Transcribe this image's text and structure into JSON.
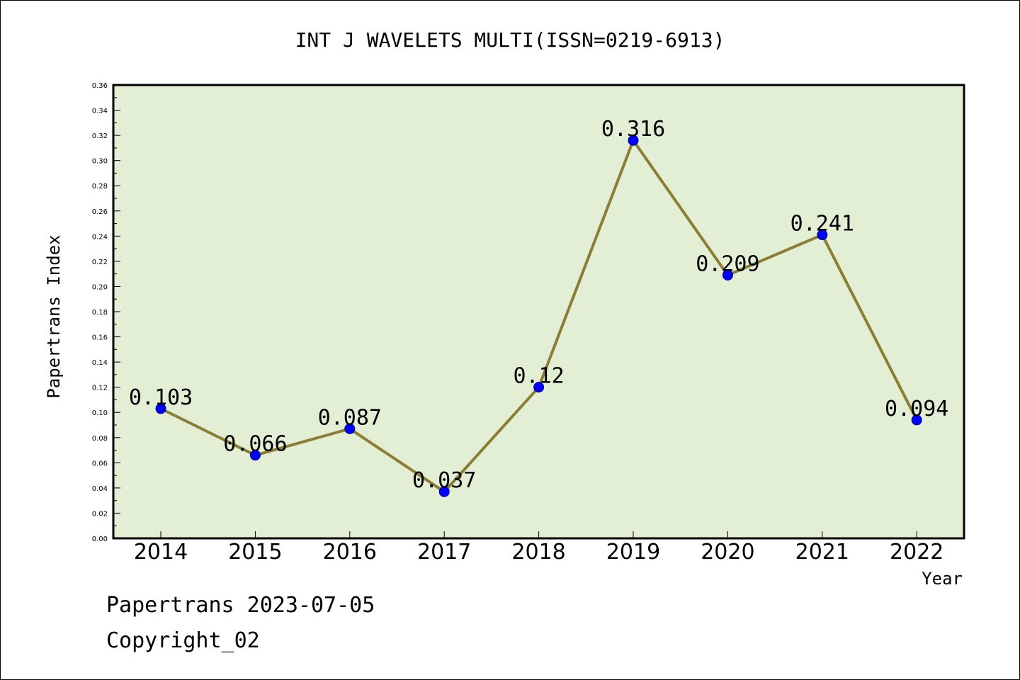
{
  "chart_data": {
    "type": "line",
    "title": "INT J WAVELETS MULTI(ISSN=0219-6913)",
    "xlabel": "Year",
    "ylabel": "Papertrans Index",
    "categories": [
      "2014",
      "2015",
      "2016",
      "2017",
      "2018",
      "2019",
      "2020",
      "2021",
      "2022"
    ],
    "values": [
      0.103,
      0.066,
      0.087,
      0.037,
      0.12,
      0.316,
      0.209,
      0.241,
      0.094
    ],
    "data_labels": [
      "0.103",
      "0.066",
      "0.087",
      "0.037",
      "0.12",
      "0.316",
      "0.209",
      "0.241",
      "0.094"
    ],
    "ylim": [
      0,
      0.36
    ],
    "yticks": [
      "0.00",
      "0.02",
      "0.04",
      "0.06",
      "0.08",
      "0.10",
      "0.12",
      "0.14",
      "0.16",
      "0.18",
      "0.20",
      "0.22",
      "0.24",
      "0.26",
      "0.28",
      "0.30",
      "0.32",
      "0.34",
      "0.36"
    ],
    "grid": false,
    "legend": "none",
    "colors": {
      "plot_background": "#e2efd4",
      "line": "#8b7d35",
      "marker": "#0000ff"
    }
  },
  "footer": {
    "line1": "Papertrans 2023-07-05",
    "line2": "Copyright_02"
  }
}
